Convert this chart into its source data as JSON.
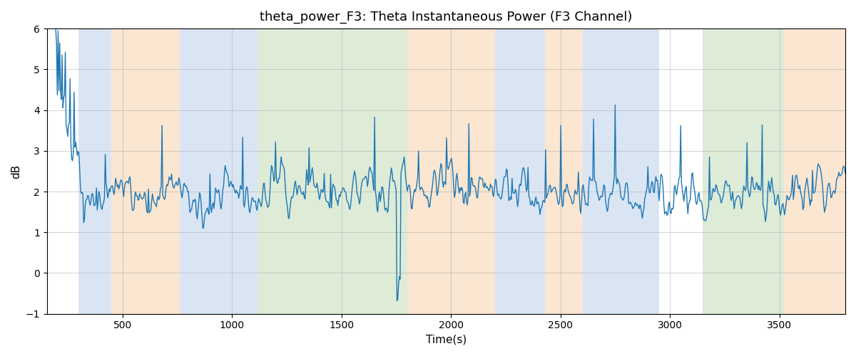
{
  "title": "theta_power_F3: Theta Instantaneous Power (F3 Channel)",
  "xlabel": "Time(s)",
  "ylabel": "dB",
  "xlim": [
    155,
    3800
  ],
  "ylim": [
    -1,
    6
  ],
  "yticks": [
    -1,
    0,
    1,
    2,
    3,
    4,
    5,
    6
  ],
  "xticks": [
    500,
    1000,
    1500,
    2000,
    2500,
    3000,
    3500
  ],
  "line_color": "#1f77b4",
  "line_width": 1.0,
  "bg_color": "#ffffff",
  "grid_color": "#b0b0b0",
  "bands": [
    {
      "start": 300,
      "end": 450,
      "color": "#aec6e8",
      "alpha": 0.45
    },
    {
      "start": 450,
      "end": 760,
      "color": "#f5c89a",
      "alpha": 0.45
    },
    {
      "start": 760,
      "end": 1120,
      "color": "#aec6e8",
      "alpha": 0.45
    },
    {
      "start": 1120,
      "end": 1800,
      "color": "#b5d4a8",
      "alpha": 0.45
    },
    {
      "start": 1800,
      "end": 2200,
      "color": "#f5c89a",
      "alpha": 0.45
    },
    {
      "start": 2200,
      "end": 2430,
      "color": "#aec6e8",
      "alpha": 0.45
    },
    {
      "start": 2430,
      "end": 2600,
      "color": "#f5c89a",
      "alpha": 0.45
    },
    {
      "start": 2600,
      "end": 2950,
      "color": "#aec6e8",
      "alpha": 0.45
    },
    {
      "start": 3150,
      "end": 3520,
      "color": "#b5d4a8",
      "alpha": 0.45
    },
    {
      "start": 3520,
      "end": 3800,
      "color": "#f5c89a",
      "alpha": 0.45
    }
  ],
  "time_start": 155,
  "time_end": 3800,
  "n_points": 1000
}
